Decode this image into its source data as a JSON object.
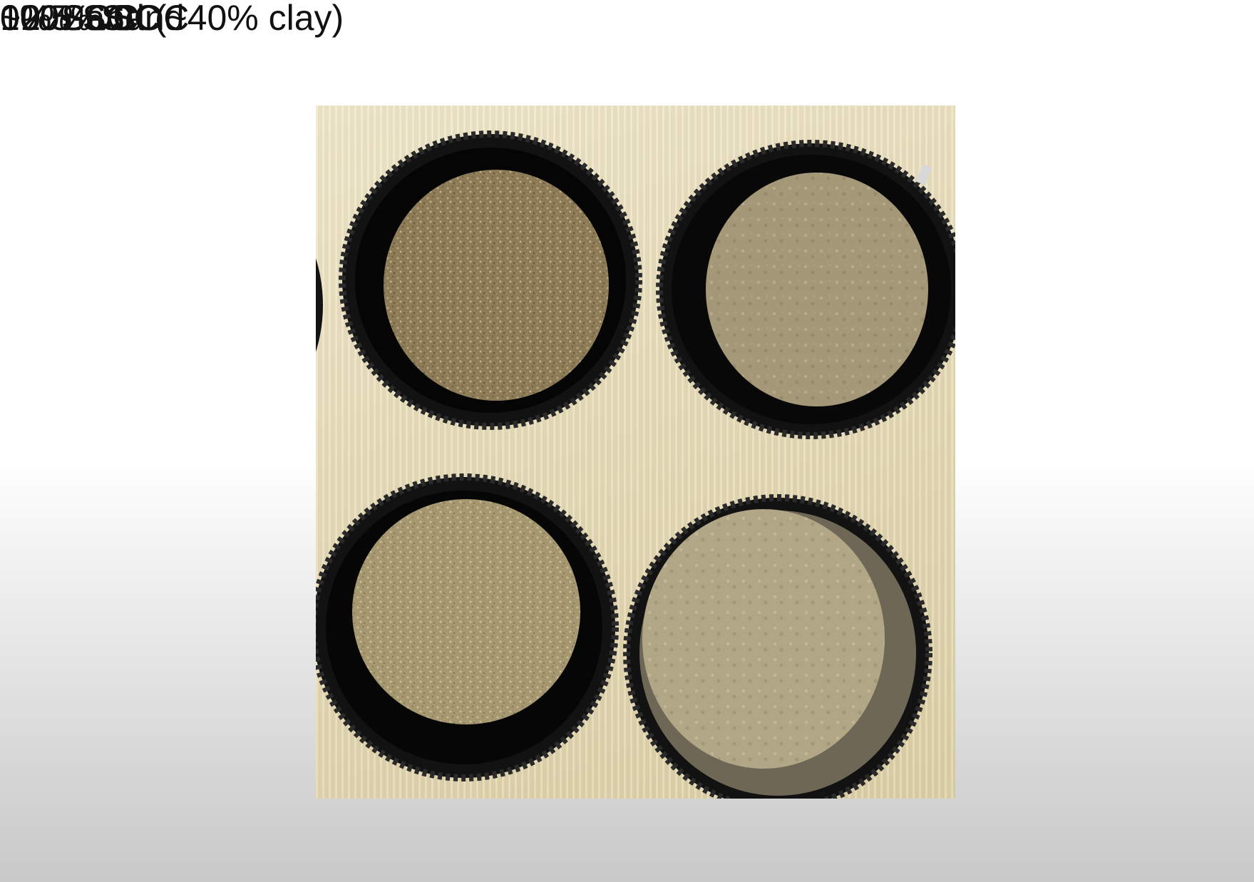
{
  "columns": {
    "sand": "100% Sand",
    "clay": "0% Sand (~40% clay)"
  },
  "rows": {
    "top_left": "~0.5% SOC",
    "top_right": "~2% SOC",
    "bottom_left": "0% SOC",
    "bottom_right": "0% SOC"
  },
  "colors": {
    "sand_soil": "#8c7b56",
    "sand_soil_pale": "#a59870",
    "clay_soil": "#a49878",
    "clay_soil_pale": "#b1a686",
    "dish": "#121212",
    "background_board": "#e8ddb9"
  }
}
